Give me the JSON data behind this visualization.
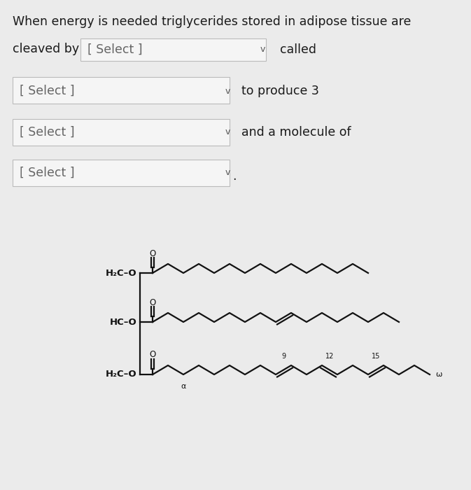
{
  "bg_color": "#ebebeb",
  "text_color": "#1a1a1a",
  "box_color": "#f5f5f5",
  "box_border": "#bbbbbb",
  "line1": "When energy is needed triglycerides stored in adipose tissue are",
  "select_label": "[ Select ]",
  "called": "called",
  "to_produce": "to produce 3",
  "and_molecule": "and a molecule of",
  "font_size": 12.5,
  "mol_lw": 1.6
}
